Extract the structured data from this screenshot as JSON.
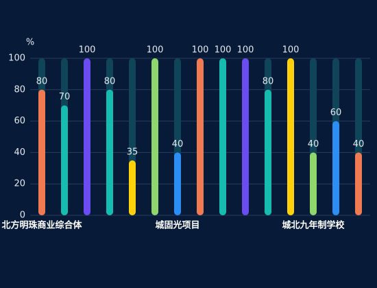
{
  "chart_data": {
    "type": "bar",
    "y_axis_label": "%",
    "categories": [
      "北方明珠商业综合体",
      null,
      null,
      null,
      null,
      null,
      "城固光项目",
      null,
      null,
      null,
      null,
      null,
      "城北九年制学校",
      null,
      null
    ],
    "values": [
      80,
      70,
      100,
      80,
      35,
      100,
      40,
      100,
      100,
      100,
      80,
      100,
      40,
      60,
      40
    ],
    "colors": [
      "#f07a52",
      "#16bcb0",
      "#6a4cf0",
      "#16bcb0",
      "#ffd10a",
      "#8fd66c",
      "#2a8ef5",
      "#f07a52",
      "#16bcb0",
      "#6a4cf0",
      "#16bcb0",
      "#ffd10a",
      "#8fd66c",
      "#2a8ef5",
      "#f07a52"
    ],
    "track_color": "#0f4459",
    "ylim": [
      0,
      100
    ],
    "yticks": [
      0,
      20,
      40,
      60,
      80,
      100
    ],
    "grid": true
  }
}
